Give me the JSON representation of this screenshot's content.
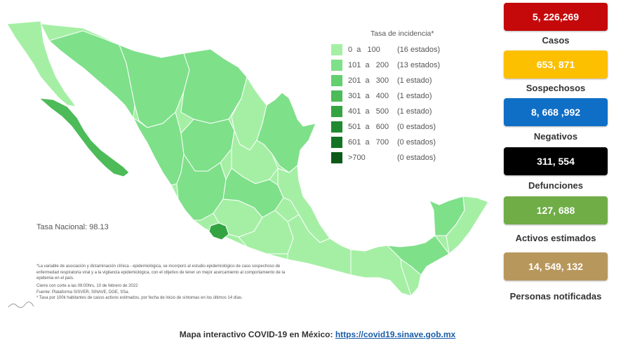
{
  "legend": {
    "title": "Tasa de incidencia*",
    "items": [
      {
        "range": "0  a   100",
        "count": "(16 estados)",
        "color": "#a5efa5"
      },
      {
        "range": "101  a   200",
        "count": "(13 estados)",
        "color": "#7fe08a"
      },
      {
        "range": "201  a   300",
        "count": "(1 estado)",
        "color": "#63cf6f"
      },
      {
        "range": "301  a   400",
        "count": "(1 estado)",
        "color": "#4cbb58"
      },
      {
        "range": "401  a   500",
        "count": "(1 estado)",
        "color": "#34a443"
      },
      {
        "range": "501  a   600",
        "count": "(0 estados)",
        "color": "#1f8a30"
      },
      {
        "range": "601  a   700",
        "count": "(0 estados)",
        "color": "#137223"
      },
      {
        "range": ">700",
        "count": "(0 estados)",
        "color": "#0b5a19"
      }
    ]
  },
  "tasa_nacional": "Tasa Nacional: 98.13",
  "notes": [
    "*La variable de asociación y dictaminación clínica - epidemiológica, se incorporó al estudio epidemiológico de caso sospechoso de enfermedad respiratoria viral y a la vigilancia epidemiológica, con el objetivo de tener un mejor acercamiento al comportamiento de la epidemia en el país.",
    "Cierre con corte a las 09:00hrs, 10 de febrero de 2022",
    "Fuente: Plataforma SISVER, SINAVE, DGE, SSa.",
    "* Tasa por 100k habitantes de casos activos estimados, por fecha de inicio de síntomas en los últimos 14 días."
  ],
  "stats": [
    {
      "value": "5, 226,269",
      "label": "Casos",
      "color": "#c5080a"
    },
    {
      "value": "653, 871",
      "label": "Sospechosos",
      "color": "#fcc000"
    },
    {
      "value": "8, 668 ,992",
      "label": "Negativos",
      "color": "#0f6fc6"
    },
    {
      "value": "311, 554",
      "label": "Defunciones",
      "color": "#000000"
    },
    {
      "value": "127, 688",
      "label": "Activos estimados",
      "color": "#70ad47"
    },
    {
      "value": "14, 549, 132",
      "label": "Personas notificadas",
      "color": "#b8975d"
    }
  ],
  "footer": {
    "text": "Mapa interactivo COVID-19 en México: ",
    "link": "https://covid19.sinave.gob.mx"
  },
  "map_colors": {
    "base": "#a5efa5",
    "mid": "#7fe08a",
    "bcs": "#4cbb58",
    "colima": "#34a443",
    "border": "#ffffff"
  }
}
